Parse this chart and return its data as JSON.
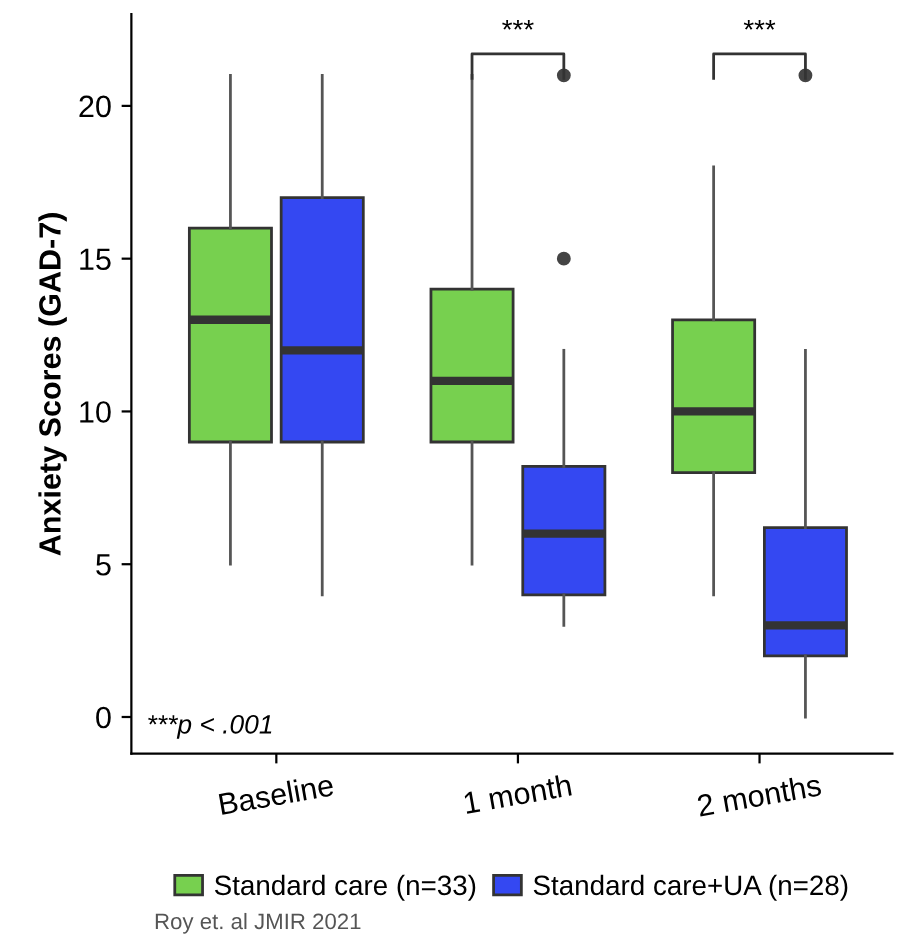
{
  "chart_data": {
    "type": "box",
    "ylabel": "Anxiety Scores (GAD-7)",
    "categories": [
      "Baseline",
      "1 month",
      "2 months"
    ],
    "series": [
      {
        "name": "Standard care (n=33)",
        "color": "#77d04f",
        "boxes": [
          {
            "low": 5,
            "q1": 9,
            "median": 13,
            "q3": 16,
            "high": 21
          },
          {
            "low": 5,
            "q1": 9,
            "median": 11,
            "q3": 14,
            "high": 21
          },
          {
            "low": 4,
            "q1": 8,
            "median": 10,
            "q3": 13,
            "high": 18
          }
        ]
      },
      {
        "name": "Standard care+UA (n=28)",
        "color": "#3448f2",
        "boxes": [
          {
            "low": 4,
            "q1": 9,
            "median": 12,
            "q3": 17,
            "high": 21
          },
          {
            "low": 3,
            "q1": 4,
            "median": 6,
            "q3": 8.2,
            "high": 12,
            "outliers": [
              15,
              21
            ]
          },
          {
            "low": 0,
            "q1": 2,
            "median": 3,
            "q3": 6.2,
            "high": 12,
            "outliers": [
              21
            ]
          }
        ]
      }
    ],
    "ylim": [
      -1.2,
      23
    ],
    "yticks": [
      0,
      5,
      10,
      15,
      20
    ],
    "grid": false,
    "legend": "bottom",
    "annotations": [
      "***",
      "***",
      "***p < .001",
      "Roy et. al JMIR 2021"
    ]
  }
}
